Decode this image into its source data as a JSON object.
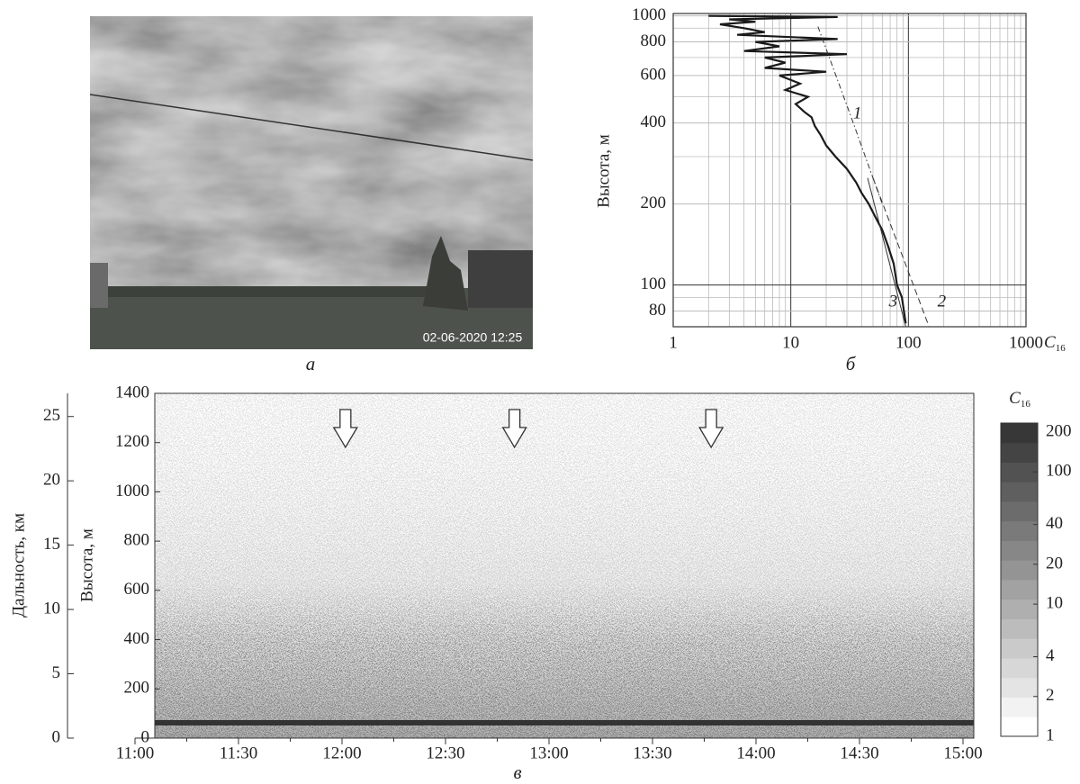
{
  "panel_a": {
    "caption": "а",
    "timestamp": "02-06-2020 12:25"
  },
  "chart_data": [
    {
      "type": "line",
      "caption": "б",
      "y_label": "Высота, м",
      "x_label": "C",
      "x_label_sub": "16",
      "xlog": true,
      "ylog": true,
      "xlim": [
        1,
        1000
      ],
      "ylim": [
        70,
        1020
      ],
      "xticks": [
        1,
        10,
        100,
        1000
      ],
      "yticks": [
        80,
        100,
        200,
        400,
        600,
        800,
        1000
      ],
      "x_minor_ticks": [
        2,
        3,
        4,
        5,
        6,
        7,
        8,
        9,
        20,
        30,
        40,
        50,
        60,
        70,
        80,
        90,
        200,
        300,
        400,
        500,
        600,
        700,
        800,
        900
      ],
      "y_minor_ticks": [
        70,
        90,
        300,
        500,
        700,
        900
      ],
      "grid": true,
      "series": [
        {
          "color": "#1a1a1a",
          "style": "profile",
          "x": [
            2,
            25,
            3,
            5,
            2.5,
            4,
            6,
            3.5,
            25,
            5,
            8,
            4,
            30,
            6,
            9,
            6,
            20,
            8,
            12,
            9,
            14,
            11,
            13,
            15,
            16,
            18,
            20,
            24,
            30,
            36,
            40,
            46,
            52,
            60,
            67,
            75,
            80,
            88,
            95
          ],
          "values": [
            1000,
            990,
            970,
            950,
            930,
            900,
            870,
            850,
            820,
            800,
            770,
            740,
            720,
            700,
            670,
            640,
            620,
            600,
            560,
            530,
            500,
            470,
            440,
            420,
            390,
            360,
            330,
            300,
            270,
            240,
            220,
            200,
            180,
            160,
            140,
            120,
            100,
            90,
            72
          ]
        },
        {
          "name": "1",
          "color": "#333",
          "style": "dashdot",
          "x": [
            17,
            32,
            60
          ],
          "values": [
            912,
            430,
            200
          ]
        },
        {
          "name": "2",
          "color": "#333",
          "style": "dashed",
          "x": [
            50,
            150
          ],
          "values": [
            250,
            70
          ]
        },
        {
          "name": "3",
          "color": "#333",
          "style": "thin",
          "x": [
            45,
            95
          ],
          "values": [
            250,
            70
          ]
        }
      ]
    },
    {
      "type": "heatmap",
      "caption": "в",
      "y_label": "Высота, м",
      "y2_label": "Дальность, км",
      "xlim": [
        660,
        900
      ],
      "ylim": [
        0,
        1400
      ],
      "y2lim": [
        0,
        26.8
      ],
      "xticks": [
        {
          "value": 660,
          "label": "11:00"
        },
        {
          "value": 690,
          "label": "11:30"
        },
        {
          "value": 720,
          "label": "12:00"
        },
        {
          "value": 750,
          "label": "12:30"
        },
        {
          "value": 780,
          "label": "13:00"
        },
        {
          "value": 810,
          "label": "13:30"
        },
        {
          "value": 840,
          "label": "14:00"
        },
        {
          "value": 870,
          "label": "14:30"
        },
        {
          "value": 900,
          "label": "15:00"
        }
      ],
      "x_minor_ticks": [
        675,
        705,
        735,
        765,
        795,
        825,
        855,
        885
      ],
      "yticks": [
        0,
        200,
        400,
        600,
        800,
        1000,
        1200,
        1400
      ],
      "y2ticks": [
        0,
        5,
        10,
        15,
        20,
        25
      ],
      "arrows": [
        721,
        770,
        827
      ],
      "colorbar": {
        "title": "C",
        "title_sub": "16",
        "log": true,
        "lim": [
          1,
          234
        ],
        "ticks": [
          1,
          2,
          4,
          10,
          20,
          40,
          100,
          200
        ]
      }
    }
  ]
}
